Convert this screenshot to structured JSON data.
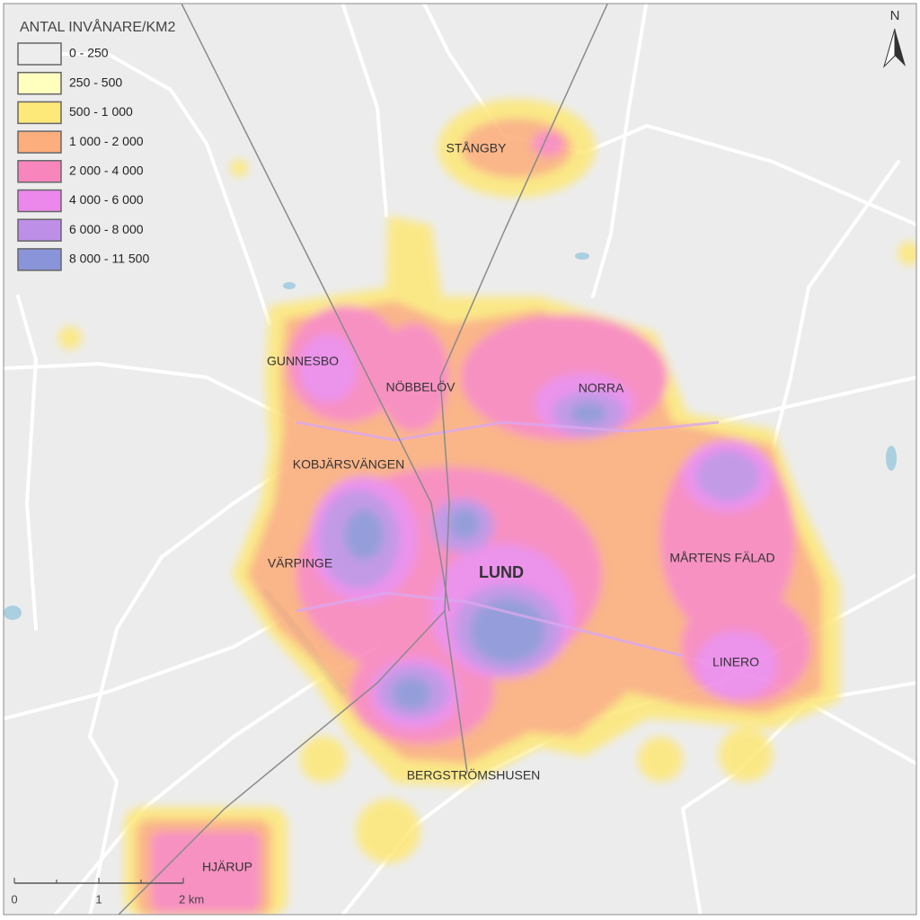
{
  "legend": {
    "title": "ANTAL INVÅNARE/KM2",
    "items": [
      {
        "label": "0 - 250",
        "color": "#ededed"
      },
      {
        "label": "250 - 500",
        "color": "#ffffbe"
      },
      {
        "label": "500 - 1 000",
        "color": "#fde87a"
      },
      {
        "label": "1 000 - 2 000",
        "color": "#fcae7c"
      },
      {
        "label": "2 000 - 4 000",
        "color": "#f985bd"
      },
      {
        "label": "4 000 - 6 000",
        "color": "#ec87ec"
      },
      {
        "label": "6 000 - 8 000",
        "color": "#bd8fe6"
      },
      {
        "label": "8 000 - 11 500",
        "color": "#8a94d8"
      }
    ]
  },
  "places": [
    {
      "name": "STÅNGBY"
    },
    {
      "name": "GUNNESBO"
    },
    {
      "name": "NÖBBELÖV"
    },
    {
      "name": "NORRA"
    },
    {
      "name": "KOBJÄRSVÄNGEN"
    },
    {
      "name": "VÄRPINGE"
    },
    {
      "name": "LUND"
    },
    {
      "name": "MÅRTENS FÄLAD"
    },
    {
      "name": "LINERO"
    },
    {
      "name": "BERGSTRÖMSHUSEN"
    },
    {
      "name": "HJÄRUP"
    }
  ],
  "scale_bar": {
    "labels": [
      "0",
      "1",
      "2 km"
    ]
  },
  "north_arrow": {
    "label": "N"
  }
}
